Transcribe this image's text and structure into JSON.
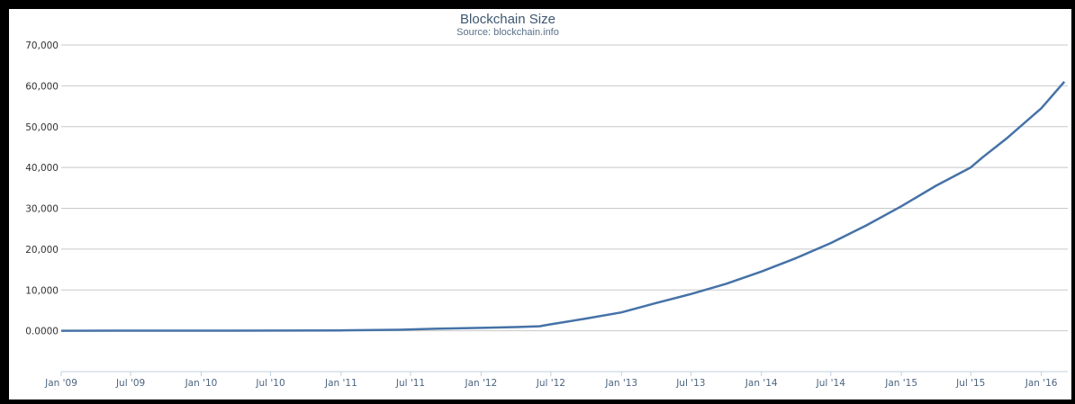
{
  "chart_data": {
    "type": "line",
    "title": "Blockchain Size",
    "subtitle": "Source: blockchain.info",
    "xlabel": "",
    "ylabel": "",
    "y_ticks": [
      "0.0000",
      "10,000",
      "20,000",
      "30,000",
      "40,000",
      "50,000",
      "60,000",
      "70,000"
    ],
    "ylim": [
      -10000,
      70000
    ],
    "x_ticks": [
      "Jan '09",
      "Jul '09",
      "Jan '10",
      "Jul '10",
      "Jan '11",
      "Jul '11",
      "Jan '12",
      "Jul '12",
      "Jan '13",
      "Jul '13",
      "Jan '14",
      "Jul '14",
      "Jan '15",
      "Jul '15",
      "Jan '16"
    ],
    "x_tick_dates": [
      "2009-01-01",
      "2009-07-01",
      "2010-01-01",
      "2010-07-01",
      "2011-01-01",
      "2011-07-01",
      "2012-01-01",
      "2012-07-01",
      "2013-01-01",
      "2013-07-01",
      "2014-01-01",
      "2014-07-01",
      "2015-01-01",
      "2015-07-01",
      "2016-01-01"
    ],
    "xlim": [
      "2009-01-01",
      "2016-03-10"
    ],
    "grid": true,
    "legend": "none",
    "color": "#4572a7",
    "series": [
      {
        "name": "",
        "x": [
          "2009-01-01",
          "2010-01-01",
          "2011-01-01",
          "2011-06-01",
          "2011-09-01",
          "2012-01-01",
          "2012-04-01",
          "2012-06-01",
          "2012-07-01",
          "2012-10-01",
          "2013-01-01",
          "2013-04-01",
          "2013-07-01",
          "2013-10-01",
          "2014-01-01",
          "2014-04-01",
          "2014-07-01",
          "2014-10-01",
          "2015-01-01",
          "2015-04-01",
          "2015-07-01",
          "2015-08-01",
          "2015-10-01",
          "2016-01-01",
          "2016-03-01"
        ],
        "y": [
          0,
          20,
          100,
          250,
          500,
          700,
          900,
          1100,
          1600,
          3000,
          4500,
          6800,
          9000,
          11500,
          14500,
          17800,
          21500,
          25800,
          30500,
          35500,
          40000,
          42500,
          47000,
          54500,
          61000
        ]
      }
    ]
  }
}
